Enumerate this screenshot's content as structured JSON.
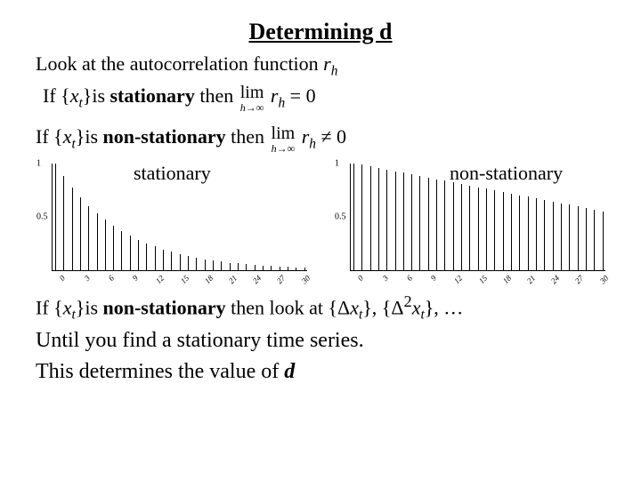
{
  "title": "Determining d",
  "intro_prefix": "Look at the autocorrelation function ",
  "intro_var": "r",
  "intro_sub": "h",
  "cond1_prefix": "If {",
  "cond1_var": "x",
  "cond1_sub": "t",
  "cond1_mid": "}is ",
  "cond1_bold": "stationary",
  "cond1_after": " then  ",
  "limit_word": "lim",
  "limit_under": "h→∞",
  "limit_expr_var": "r",
  "limit_expr_sub": "h",
  "eq_zero": " = 0",
  "neq_zero": " ≠ 0",
  "cond2_bold": "non-stationary",
  "chart1_label": "stationary",
  "chart2_label": "non-stationary",
  "chart_yticks": [
    "1",
    "0.5"
  ],
  "chart_xticks": [
    "0",
    "3",
    "6",
    "9",
    "12",
    "15",
    "18",
    "21",
    "24",
    "27",
    "30"
  ],
  "chart1_values": [
    1.0,
    0.88,
    0.77,
    0.68,
    0.6,
    0.53,
    0.47,
    0.41,
    0.36,
    0.32,
    0.28,
    0.25,
    0.22,
    0.19,
    0.17,
    0.15,
    0.13,
    0.115,
    0.1,
    0.088,
    0.077,
    0.068,
    0.06,
    0.053,
    0.046,
    0.041,
    0.036,
    0.032,
    0.028,
    0.025,
    0.022
  ],
  "chart2_values": [
    1.0,
    0.985,
    0.97,
    0.955,
    0.94,
    0.925,
    0.91,
    0.895,
    0.88,
    0.865,
    0.85,
    0.835,
    0.82,
    0.805,
    0.79,
    0.775,
    0.76,
    0.745,
    0.73,
    0.715,
    0.7,
    0.685,
    0.67,
    0.655,
    0.64,
    0.625,
    0.61,
    0.595,
    0.58,
    0.565,
    0.55
  ],
  "bar_color": "#000000",
  "bottom1_prefix": "If {",
  "bottom1_after": " then look at {Δ",
  "bottom1_close1": "}, {Δ",
  "bottom1_sup2": "2",
  "bottom1_close2": "}, …",
  "bottom2": "Until you find a stationary time series.",
  "bottom3_prefix": "This determines the value of ",
  "bottom3_var": "d"
}
